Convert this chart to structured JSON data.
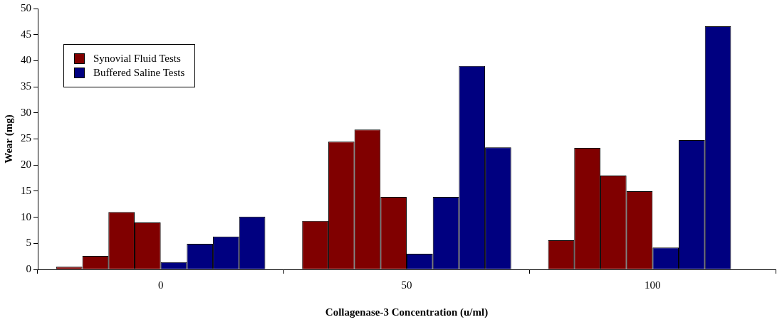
{
  "chart_data": {
    "type": "bar",
    "xlabel": "Collagenase-3 Concentration (u/ml)",
    "ylabel": "Wear (mg)",
    "categories": [
      "0",
      "50",
      "100"
    ],
    "series": [
      {
        "name": "Synovial Fluid Tests",
        "color": "#800000",
        "values": [
          0.5,
          9.3,
          5.6
        ]
      },
      {
        "color": "#800000",
        "values": [
          2.6,
          24.5,
          23.3
        ]
      },
      {
        "color": "#800000",
        "values": [
          11.0,
          26.8,
          18.0
        ]
      },
      {
        "color": "#800000",
        "values": [
          9.0,
          13.9,
          15.0
        ]
      },
      {
        "name": "Buffered Saline Tests",
        "color": "#000080",
        "values": [
          1.4,
          3.0,
          4.2
        ]
      },
      {
        "color": "#000080",
        "values": [
          4.9,
          13.9,
          24.8
        ]
      },
      {
        "color": "#000080",
        "values": [
          6.3,
          39.0,
          46.6
        ]
      },
      {
        "color": "#000080",
        "values": [
          10.1,
          23.4,
          null
        ]
      }
    ],
    "ylim": [
      0,
      50
    ],
    "yticks": [
      0,
      5,
      10,
      15,
      20,
      25,
      30,
      35,
      40,
      45,
      50
    ],
    "grid": false,
    "legend": "top left"
  }
}
